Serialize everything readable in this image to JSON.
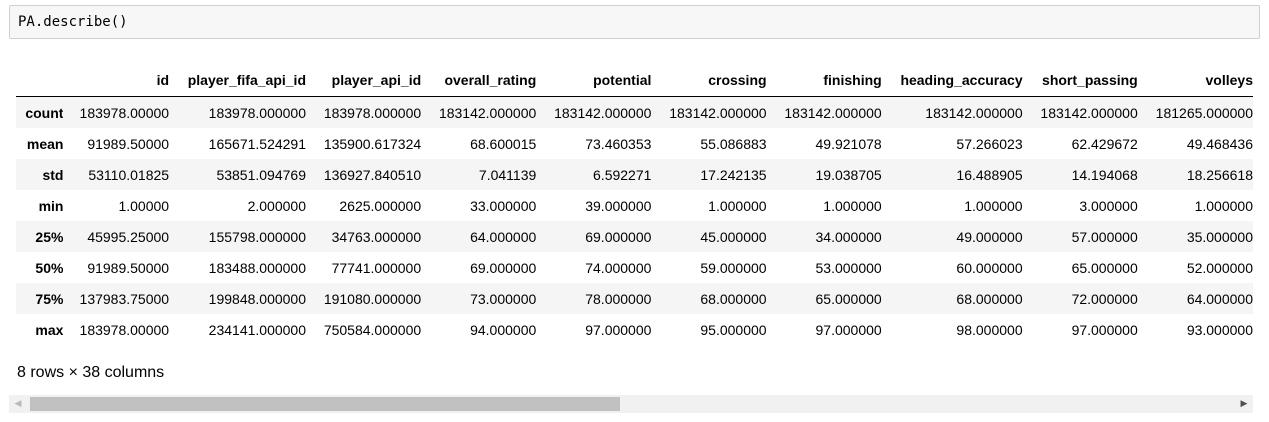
{
  "cell": {
    "code": "PA.describe()"
  },
  "table": {
    "columns": [
      "id",
      "player_fifa_api_id",
      "player_api_id",
      "overall_rating",
      "potential",
      "crossing",
      "finishing",
      "heading_accuracy",
      "short_passing",
      "volleys"
    ],
    "rows": [
      {
        "label": "count",
        "values": [
          "183978.00000",
          "183978.000000",
          "183978.000000",
          "183142.000000",
          "183142.000000",
          "183142.000000",
          "183142.000000",
          "183142.000000",
          "183142.000000",
          "181265.000000"
        ]
      },
      {
        "label": "mean",
        "values": [
          "91989.50000",
          "165671.524291",
          "135900.617324",
          "68.600015",
          "73.460353",
          "55.086883",
          "49.921078",
          "57.266023",
          "62.429672",
          "49.468436"
        ]
      },
      {
        "label": "std",
        "values": [
          "53110.01825",
          "53851.094769",
          "136927.840510",
          "7.041139",
          "6.592271",
          "17.242135",
          "19.038705",
          "16.488905",
          "14.194068",
          "18.256618"
        ]
      },
      {
        "label": "min",
        "values": [
          "1.00000",
          "2.000000",
          "2625.000000",
          "33.000000",
          "39.000000",
          "1.000000",
          "1.000000",
          "1.000000",
          "3.000000",
          "1.000000"
        ]
      },
      {
        "label": "25%",
        "values": [
          "45995.25000",
          "155798.000000",
          "34763.000000",
          "64.000000",
          "69.000000",
          "45.000000",
          "34.000000",
          "49.000000",
          "57.000000",
          "35.000000"
        ]
      },
      {
        "label": "50%",
        "values": [
          "91989.50000",
          "183488.000000",
          "77741.000000",
          "69.000000",
          "74.000000",
          "59.000000",
          "53.000000",
          "60.000000",
          "65.000000",
          "52.000000"
        ]
      },
      {
        "label": "75%",
        "values": [
          "137983.75000",
          "199848.000000",
          "191080.000000",
          "73.000000",
          "78.000000",
          "68.000000",
          "65.000000",
          "68.000000",
          "72.000000",
          "64.000000"
        ]
      },
      {
        "label": "max",
        "values": [
          "183978.00000",
          "234141.000000",
          "750584.000000",
          "94.000000",
          "97.000000",
          "95.000000",
          "97.000000",
          "98.000000",
          "97.000000",
          "93.000000"
        ]
      }
    ]
  },
  "summary": "8 rows × 38 columns",
  "scrollbar": {
    "left_arrow": "◀",
    "right_arrow": "▶",
    "position": 0.48
  }
}
